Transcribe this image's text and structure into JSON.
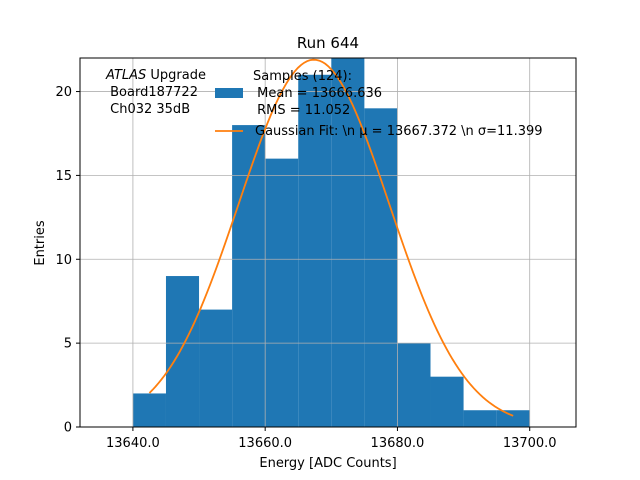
{
  "chart_data": {
    "type": "bar",
    "title": "Run 644",
    "xlabel": "Energy [ADC Counts]",
    "ylabel": "Entries",
    "xlim": [
      13632,
      13707
    ],
    "ylim": [
      0,
      22
    ],
    "xticks": [
      13640,
      13660,
      13680,
      13700
    ],
    "xtick_labels": [
      "13640.0",
      "13660.0",
      "13680.0",
      "13700.0"
    ],
    "yticks": [
      0,
      5,
      10,
      15,
      20
    ],
    "ytick_labels": [
      "0",
      "5",
      "10",
      "15",
      "20"
    ],
    "grid": true,
    "histogram": {
      "bin_edges": [
        13640,
        13645,
        13650,
        13655,
        13660,
        13665,
        13670,
        13675,
        13680,
        13685,
        13690,
        13695,
        13700
      ],
      "counts": [
        2,
        9,
        7,
        18,
        16,
        21,
        22,
        19,
        5,
        3,
        1,
        1
      ],
      "color": "#1f77b4"
    },
    "fit": {
      "mu": 13667.372,
      "sigma": 11.399,
      "amplitude": 21.9,
      "x_range": [
        13642.5,
        13697.5
      ],
      "color": "#ff7f0e"
    },
    "annotation": {
      "atlas_italic": "ATLAS",
      "atlas_rest": " Upgrade",
      "line2": " Board187722",
      "line3": " Ch032 35dB"
    },
    "legend": {
      "placement": "top",
      "samples_lines": [
        "Samples (124):",
        " Mean = 13666.636",
        " RMS = 11.052"
      ],
      "fit_label": "Gaussian Fit: \\n μ = 13667.372 \\n σ=11.399"
    }
  }
}
